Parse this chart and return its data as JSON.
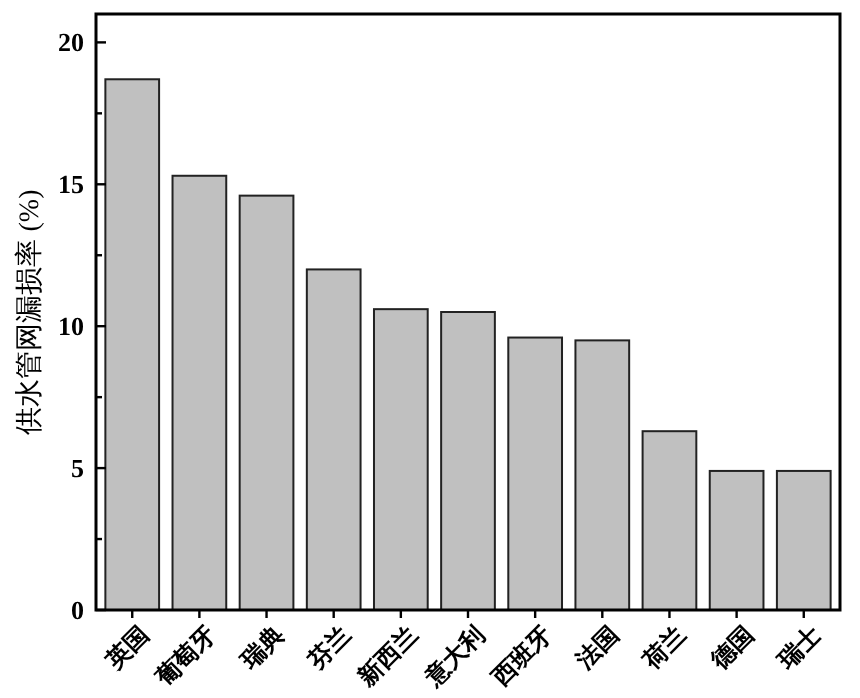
{
  "chart_data": {
    "type": "bar",
    "ylabel": "供水管网漏损率 (%)",
    "categories": [
      "英国",
      "葡萄牙",
      "瑞典",
      "芬兰",
      "新西兰",
      "意大利",
      "西班牙",
      "法国",
      "荷兰",
      "德国",
      "瑞士"
    ],
    "values": [
      18.7,
      15.3,
      14.6,
      12.0,
      10.6,
      10.5,
      9.6,
      9.5,
      6.3,
      4.9,
      4.9
    ],
    "color": "#c0c0c0",
    "ylim": [
      0,
      21
    ],
    "yticks": [
      0,
      {
        "value": 2.5,
        "label": null
      },
      5,
      {
        "value": 7.5,
        "label": null
      },
      10,
      {
        "value": 12.5,
        "label": null
      },
      15,
      {
        "value": 17.5,
        "label": null
      },
      20
    ],
    "grid": false
  }
}
